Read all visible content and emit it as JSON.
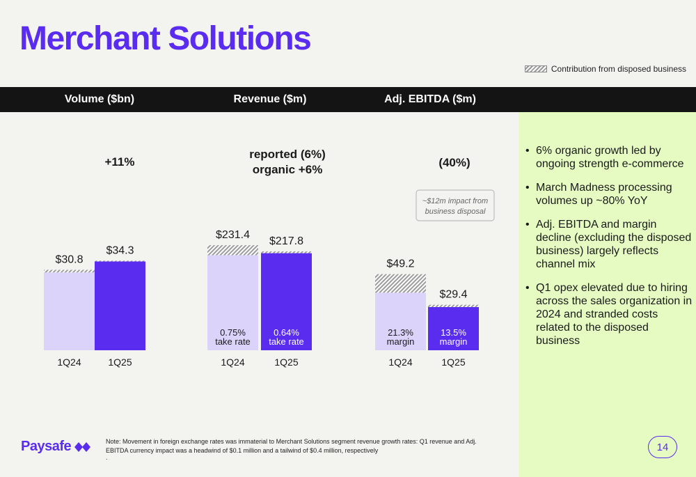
{
  "page": {
    "title": "Merchant Solutions",
    "legend_label": "Contribution from disposed business",
    "note": "Note: Movement in foreign exchange rates was immaterial to Merchant Solutions segment revenue growth rates: Q1 revenue and Adj. EBITDA currency impact was a headwind of $0.1 million and a tailwind of $0.4 million, respectively",
    "note_dot": ".",
    "logo_text": "Paysafe",
    "page_number": "14",
    "bullets": [
      "6% organic growth led by ongoing strength e-commerce",
      "March Madness processing volumes up ~80% YoY",
      "Adj. EBITDA and margin decline (excluding the disposed business) largely reflects channel mix",
      "Q1 opex elevated due to hiring across the sales organization in 2024 and stranded costs related to the disposed business"
    ],
    "colors": {
      "brand": "#5a2cf0",
      "prior_bar": "#dcd3fb",
      "current_bar": "#5a2cf0",
      "header_band": "#141414",
      "panel_green": "#e5fbc2"
    }
  },
  "chart_data": [
    {
      "type": "bar",
      "title": "Volume ($bn)",
      "categories": [
        "1Q24",
        "1Q25"
      ],
      "values": [
        30.8,
        34.3
      ],
      "labels": [
        "$30.8",
        "$34.3"
      ],
      "disposed_contribution": [
        1.0,
        0.3
      ],
      "growth_label": [
        "+11%"
      ],
      "ylim": [
        0,
        80
      ],
      "inner_labels": []
    },
    {
      "type": "bar",
      "title": "Revenue ($m)",
      "categories": [
        "1Q24",
        "1Q25"
      ],
      "values": [
        231.4,
        217.8
      ],
      "labels": [
        "$231.4",
        "$217.8"
      ],
      "disposed_contribution": [
        22,
        4
      ],
      "growth_label": [
        "reported (6%)",
        "organic +6%"
      ],
      "ylim": [
        0,
        460
      ],
      "inner_labels": [
        [
          "0.75%",
          "take rate"
        ],
        [
          "0.64%",
          "take rate"
        ]
      ]
    },
    {
      "type": "bar",
      "title": "Adj. EBITDA ($m)",
      "categories": [
        "1Q24",
        "1Q25"
      ],
      "values": [
        49.2,
        29.4
      ],
      "labels": [
        "$49.2",
        "$29.4"
      ],
      "disposed_contribution": [
        12,
        1.5
      ],
      "growth_label": [
        "(40%)"
      ],
      "ylim": [
        0,
        135
      ],
      "inner_labels": [
        [
          "21.3%",
          "margin"
        ],
        [
          "13.5%",
          "margin"
        ]
      ],
      "callout": "~$12m impact from business disposal"
    }
  ]
}
